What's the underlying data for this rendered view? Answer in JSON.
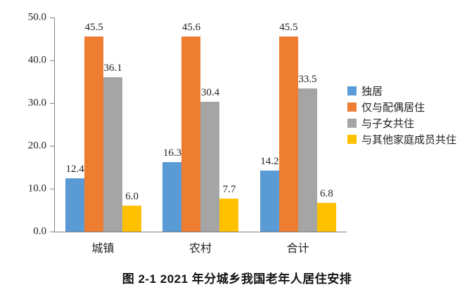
{
  "chart_data": {
    "type": "bar",
    "title": "图 2-1 2021 年分城乡我国老年人居住安排",
    "categories": [
      "城镇",
      "农村",
      "合计"
    ],
    "series": [
      {
        "name": "独居",
        "key": "living-alone",
        "color": "#5B9BD5",
        "values": [
          12.4,
          16.3,
          14.2
        ]
      },
      {
        "name": "仅与配偶居住",
        "key": "with-spouse-only",
        "color": "#ED7D31",
        "values": [
          45.5,
          45.6,
          45.5
        ]
      },
      {
        "name": "与子女共住",
        "key": "with-children",
        "color": "#A5A5A5",
        "values": [
          36.1,
          30.4,
          33.5
        ]
      },
      {
        "name": "与其他家庭成员共住",
        "key": "with-other-family",
        "color": "#FFC000",
        "values": [
          6.0,
          7.7,
          6.8
        ]
      }
    ],
    "ylim": [
      0,
      50
    ],
    "yticks": [
      "0.0",
      "10.0",
      "20.0",
      "30.0",
      "40.0",
      "50.0"
    ],
    "grid": false,
    "legend_position": "right",
    "data_labels": true,
    "axis_color": "#808080"
  }
}
